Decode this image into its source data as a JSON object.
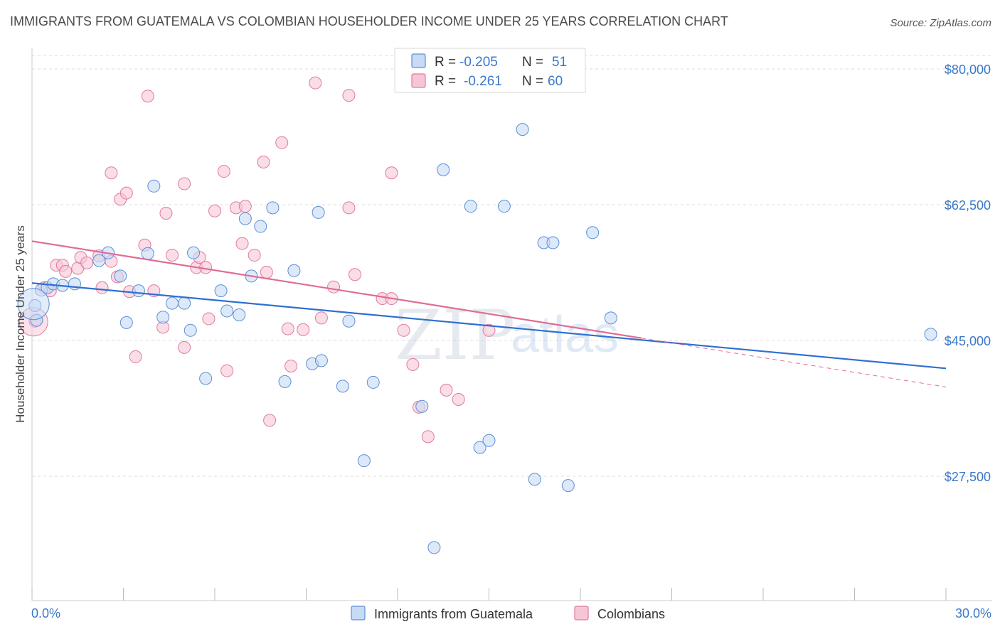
{
  "title": "IMMIGRANTS FROM GUATEMALA VS COLOMBIAN HOUSEHOLDER INCOME UNDER 25 YEARS CORRELATION CHART",
  "source": "Source: ZipAtlas.com",
  "watermark": {
    "zip": "ZIP",
    "atlas": "atlas"
  },
  "colors": {
    "blue": "#5b8fd6",
    "blue_fill": "#c7dbf5",
    "pink": "#e07aa0",
    "pink_fill": "#f7c6d6",
    "blue_line": "#2f6fd0",
    "pink_line": "#e06c93",
    "tick_text": "#3a78c9",
    "grid": "#dddddd"
  },
  "legend": {
    "rows": [
      {
        "r_label": "R = ",
        "r_value": "-0.205",
        "n_label": "N = ",
        "n_value": "51"
      },
      {
        "r_label": "R = ",
        "r_value": "-0.261",
        "n_label": "N = ",
        "n_value": "60"
      }
    ]
  },
  "bottom_legend": [
    "Immigrants from Guatemala",
    "Colombians"
  ],
  "chart_data": {
    "type": "scatter",
    "title": "IMMIGRANTS FROM GUATEMALA VS COLOMBIAN HOUSEHOLDER INCOME UNDER 25 YEARS CORRELATION CHART",
    "xlabel": "",
    "ylabel": "Householder Income Under 25 years",
    "xlim": [
      0,
      30
    ],
    "ylim": [
      14000,
      84000
    ],
    "x_tick_labels": [
      "0.0%",
      "30.0%"
    ],
    "y_ticks": [
      27500,
      45000,
      62500,
      80000
    ],
    "y_tick_labels": [
      "$27,500",
      "$45,000",
      "$62,500",
      "$80,000"
    ],
    "grid": true,
    "legend_position": "top-center",
    "series": [
      {
        "name": "Immigrants from Guatemala",
        "r": -0.205,
        "n": 51,
        "trend": [
          [
            0,
            52400
          ],
          [
            30,
            41400
          ]
        ],
        "points": [
          [
            0.1,
            49500
          ],
          [
            0.3,
            51500
          ],
          [
            0.5,
            51800
          ],
          [
            0.7,
            52300
          ],
          [
            1.0,
            52100
          ],
          [
            1.4,
            52300
          ],
          [
            2.2,
            55300
          ],
          [
            2.5,
            56300
          ],
          [
            2.9,
            53300
          ],
          [
            3.1,
            47300
          ],
          [
            3.5,
            51400
          ],
          [
            3.8,
            56200
          ],
          [
            4.0,
            64900
          ],
          [
            4.3,
            48000
          ],
          [
            4.6,
            49800
          ],
          [
            5.0,
            49800
          ],
          [
            5.2,
            46300
          ],
          [
            5.3,
            56300
          ],
          [
            5.7,
            40100
          ],
          [
            6.2,
            51400
          ],
          [
            6.4,
            48800
          ],
          [
            6.8,
            48300
          ],
          [
            7.0,
            60700
          ],
          [
            7.2,
            53300
          ],
          [
            7.5,
            59700
          ],
          [
            7.9,
            62100
          ],
          [
            8.3,
            39700
          ],
          [
            8.6,
            54000
          ],
          [
            9.2,
            42000
          ],
          [
            9.5,
            42400
          ],
          [
            9.4,
            61500
          ],
          [
            10.2,
            39100
          ],
          [
            10.4,
            47500
          ],
          [
            10.9,
            29500
          ],
          [
            11.2,
            39600
          ],
          [
            12.8,
            36500
          ],
          [
            13.2,
            18300
          ],
          [
            13.5,
            67000
          ],
          [
            14.7,
            31200
          ],
          [
            15.0,
            32100
          ],
          [
            14.4,
            62300
          ],
          [
            15.5,
            62300
          ],
          [
            16.1,
            72200
          ],
          [
            16.5,
            27100
          ],
          [
            16.8,
            57600
          ],
          [
            17.1,
            57600
          ],
          [
            17.6,
            26300
          ],
          [
            18.4,
            58900
          ],
          [
            19.0,
            47900
          ],
          [
            29.5,
            45800
          ],
          [
            0.15,
            47600
          ]
        ]
      },
      {
        "name": "Colombians",
        "r": -0.261,
        "n": 60,
        "trend_solid": [
          [
            0,
            57800
          ],
          [
            20,
            45300
          ]
        ],
        "trend_dashed": [
          [
            20,
            45300
          ],
          [
            30,
            39000
          ]
        ],
        "points": [
          [
            0.1,
            47500
          ],
          [
            0.4,
            51800
          ],
          [
            0.6,
            51400
          ],
          [
            0.8,
            54700
          ],
          [
            1.0,
            54700
          ],
          [
            1.1,
            53900
          ],
          [
            1.5,
            54300
          ],
          [
            1.6,
            55700
          ],
          [
            1.8,
            55000
          ],
          [
            2.2,
            55900
          ],
          [
            2.3,
            51800
          ],
          [
            2.6,
            55200
          ],
          [
            2.8,
            53200
          ],
          [
            2.6,
            66600
          ],
          [
            2.9,
            63200
          ],
          [
            3.1,
            64000
          ],
          [
            3.2,
            51300
          ],
          [
            3.4,
            42900
          ],
          [
            3.7,
            57300
          ],
          [
            3.8,
            76500
          ],
          [
            4.0,
            51400
          ],
          [
            4.3,
            46700
          ],
          [
            4.4,
            61400
          ],
          [
            4.6,
            56000
          ],
          [
            5.0,
            65200
          ],
          [
            5.0,
            44100
          ],
          [
            5.4,
            54400
          ],
          [
            5.5,
            55700
          ],
          [
            5.7,
            54400
          ],
          [
            5.8,
            47800
          ],
          [
            6.0,
            61700
          ],
          [
            6.3,
            66800
          ],
          [
            6.4,
            41100
          ],
          [
            6.7,
            62100
          ],
          [
            6.9,
            57500
          ],
          [
            7.0,
            62300
          ],
          [
            7.3,
            56000
          ],
          [
            7.6,
            68000
          ],
          [
            7.7,
            53800
          ],
          [
            7.8,
            34700
          ],
          [
            8.2,
            70500
          ],
          [
            8.4,
            46500
          ],
          [
            8.5,
            41700
          ],
          [
            8.9,
            46400
          ],
          [
            9.3,
            78200
          ],
          [
            9.5,
            47900
          ],
          [
            9.9,
            51900
          ],
          [
            10.4,
            76600
          ],
          [
            10.4,
            62100
          ],
          [
            10.6,
            53500
          ],
          [
            11.5,
            50400
          ],
          [
            11.8,
            66600
          ],
          [
            11.8,
            50400
          ],
          [
            12.2,
            46300
          ],
          [
            12.5,
            41900
          ],
          [
            12.7,
            36400
          ],
          [
            13.0,
            32600
          ],
          [
            13.6,
            38600
          ],
          [
            14.0,
            37400
          ],
          [
            15.0,
            46300
          ]
        ]
      }
    ]
  }
}
